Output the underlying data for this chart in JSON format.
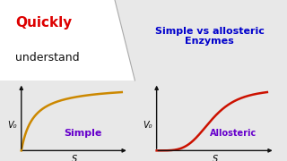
{
  "bg_color": "#e8e8e8",
  "top_left_bg": "#ffffff",
  "title_quickly": "Quickly",
  "title_understand": "understand",
  "title_right": "Simple vs allosteric\nEnzymes",
  "quickly_color": "#dd0000",
  "understand_color": "#111111",
  "title_right_color": "#0000cc",
  "left_label": "Simple",
  "right_label": "Allosteric",
  "label_color": "#6600cc",
  "curve_color_left": "#cc8800",
  "curve_color_right": "#cc1100",
  "axis_color": "#111111",
  "vo_label": "V₀",
  "s_label": "S",
  "divider_color": "#aaaaaa"
}
